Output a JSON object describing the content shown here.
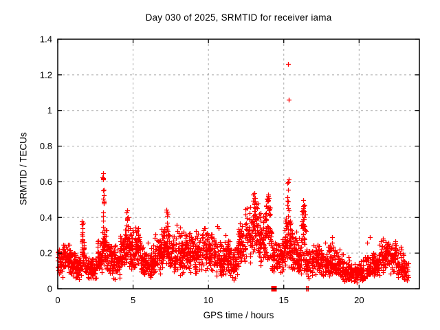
{
  "chart_data": {
    "type": "scatter",
    "title": "Day 030 of 2025, SRMTID for receiver iama",
    "xlabel": "GPS time / hours",
    "ylabel": "SRMTID / TECUs",
    "xlim": [
      0,
      24
    ],
    "ylim": [
      0,
      1.4
    ],
    "xticks": [
      0,
      5,
      10,
      15,
      20
    ],
    "ytick_labels": [
      "0",
      "0.2",
      "0.4",
      "0.6",
      "0.8",
      "1",
      "1.2",
      "1.4"
    ],
    "ytick_values": [
      0,
      0.2,
      0.4,
      0.6,
      0.8,
      1.0,
      1.2,
      1.4
    ],
    "grid": true,
    "legend_position": "none",
    "marker": {
      "symbol": "plus",
      "color": "#ff0000",
      "size": 7
    },
    "border_color": "#000000",
    "grid_color": "#a8a8a8",
    "series_bands": [
      [
        0.0,
        0.35,
        0.06,
        0.24,
        45
      ],
      [
        0.35,
        0.75,
        0.08,
        0.27,
        50
      ],
      [
        0.75,
        1.15,
        0.06,
        0.24,
        50
      ],
      [
        1.15,
        1.55,
        0.05,
        0.2,
        45
      ],
      [
        1.55,
        1.8,
        0.08,
        0.3,
        30
      ],
      [
        1.8,
        2.2,
        0.05,
        0.2,
        45
      ],
      [
        2.2,
        2.6,
        0.05,
        0.19,
        45
      ],
      [
        2.6,
        2.95,
        0.08,
        0.3,
        45
      ],
      [
        2.95,
        3.2,
        0.1,
        0.42,
        40
      ],
      [
        3.2,
        3.6,
        0.08,
        0.3,
        45
      ],
      [
        3.6,
        4.1,
        0.05,
        0.26,
        55
      ],
      [
        4.1,
        4.45,
        0.1,
        0.31,
        45
      ],
      [
        4.45,
        4.8,
        0.12,
        0.42,
        50
      ],
      [
        4.8,
        5.1,
        0.09,
        0.34,
        40
      ],
      [
        5.1,
        5.45,
        0.1,
        0.42,
        45
      ],
      [
        5.45,
        5.9,
        0.05,
        0.26,
        50
      ],
      [
        5.9,
        6.4,
        0.05,
        0.26,
        55
      ],
      [
        6.4,
        6.8,
        0.08,
        0.32,
        50
      ],
      [
        6.8,
        7.1,
        0.1,
        0.38,
        40
      ],
      [
        7.1,
        7.4,
        0.12,
        0.45,
        45
      ],
      [
        7.4,
        7.9,
        0.08,
        0.32,
        55
      ],
      [
        7.9,
        8.3,
        0.06,
        0.38,
        50
      ],
      [
        8.3,
        8.6,
        0.1,
        0.36,
        40
      ],
      [
        8.6,
        9.1,
        0.08,
        0.34,
        55
      ],
      [
        9.1,
        9.55,
        0.06,
        0.35,
        50
      ],
      [
        9.55,
        9.95,
        0.1,
        0.4,
        45
      ],
      [
        9.95,
        10.45,
        0.1,
        0.33,
        55
      ],
      [
        10.45,
        10.95,
        0.06,
        0.28,
        55
      ],
      [
        10.95,
        11.45,
        0.07,
        0.28,
        55
      ],
      [
        11.45,
        11.95,
        0.04,
        0.27,
        55
      ],
      [
        11.95,
        12.45,
        0.1,
        0.38,
        55
      ],
      [
        12.45,
        12.95,
        0.13,
        0.48,
        55
      ],
      [
        12.95,
        13.35,
        0.16,
        0.55,
        50
      ],
      [
        13.35,
        13.7,
        0.13,
        0.46,
        45
      ],
      [
        13.7,
        14.2,
        0.14,
        0.54,
        65
      ],
      [
        14.2,
        14.65,
        0.08,
        0.28,
        45
      ],
      [
        14.65,
        15.05,
        0.08,
        0.33,
        45
      ],
      [
        15.05,
        15.45,
        0.1,
        0.47,
        60
      ],
      [
        15.45,
        15.85,
        0.09,
        0.35,
        50
      ],
      [
        15.85,
        16.15,
        0.07,
        0.3,
        40
      ],
      [
        16.15,
        16.45,
        0.1,
        0.48,
        40
      ],
      [
        16.45,
        16.95,
        0.05,
        0.25,
        50
      ],
      [
        16.95,
        17.45,
        0.06,
        0.3,
        50
      ],
      [
        17.45,
        17.95,
        0.05,
        0.27,
        55
      ],
      [
        17.95,
        18.3,
        0.06,
        0.3,
        45
      ],
      [
        18.3,
        18.85,
        0.05,
        0.24,
        55
      ],
      [
        18.85,
        19.35,
        0.04,
        0.2,
        55
      ],
      [
        19.35,
        19.85,
        0.03,
        0.15,
        50
      ],
      [
        19.85,
        20.4,
        0.04,
        0.17,
        55
      ],
      [
        20.4,
        20.95,
        0.05,
        0.21,
        50
      ],
      [
        20.95,
        21.35,
        0.06,
        0.22,
        45
      ],
      [
        21.35,
        21.95,
        0.09,
        0.31,
        60
      ],
      [
        21.95,
        22.45,
        0.08,
        0.28,
        55
      ],
      [
        22.45,
        22.95,
        0.05,
        0.24,
        50
      ],
      [
        22.95,
        23.25,
        0.04,
        0.16,
        30
      ]
    ],
    "spike_columns": [
      [
        1.63,
        0.27,
        0.38,
        8
      ],
      [
        3.02,
        0.4,
        0.68,
        15
      ],
      [
        4.62,
        0.38,
        0.44,
        5
      ],
      [
        7.22,
        0.4,
        0.46,
        5
      ],
      [
        13.05,
        0.45,
        0.57,
        9
      ],
      [
        13.95,
        0.48,
        0.55,
        6
      ],
      [
        15.28,
        0.44,
        0.62,
        10
      ],
      [
        16.3,
        0.36,
        0.5,
        8
      ]
    ],
    "outliers": [
      [
        15.3,
        1.26
      ],
      [
        15.33,
        1.06
      ],
      [
        10.6,
        0.35
      ],
      [
        10.68,
        0.34
      ],
      [
        20.55,
        0.26
      ],
      [
        20.7,
        0.29
      ],
      [
        18.7,
        0.22
      ],
      [
        11.15,
        0.3
      ]
    ],
    "zero_markers": {
      "square_x": 14.35,
      "double_bar_x": [
        16.52,
        16.62
      ]
    }
  }
}
